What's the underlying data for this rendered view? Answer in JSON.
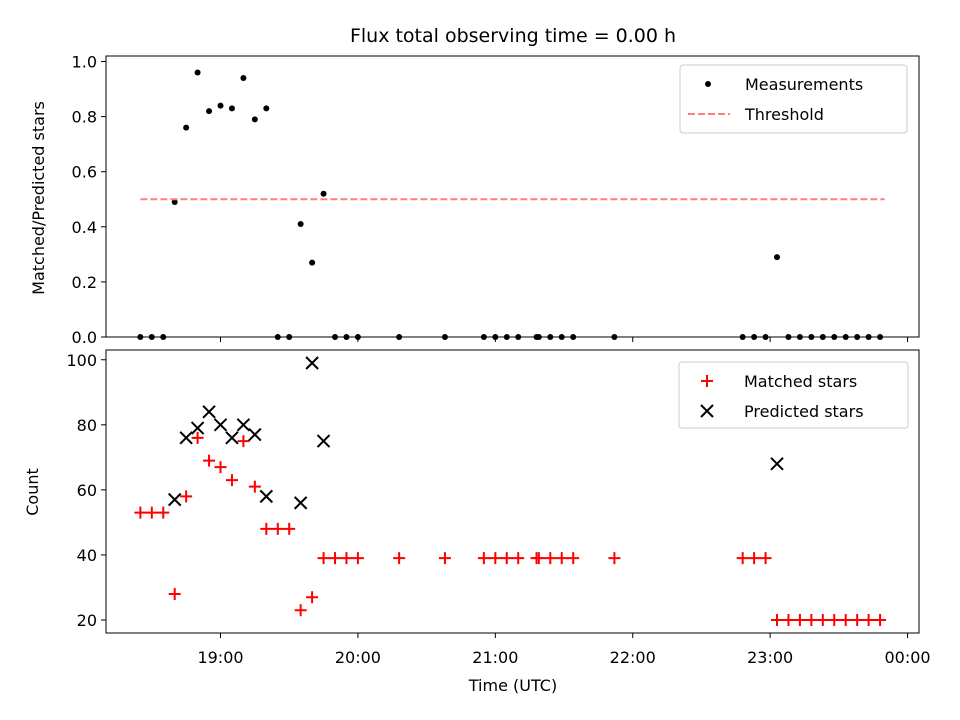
{
  "chart_data": [
    {
      "type": "scatter",
      "title": "Flux total observing time = 0.00 h",
      "ylabel": "Matched/Predicted stars",
      "xlabel": "",
      "ylim": [
        0,
        1.02
      ],
      "yticks": [
        "0.0",
        "0.2",
        "0.4",
        "0.6",
        "0.8",
        "1.0"
      ],
      "xlim": [
        "18:10",
        "00:05"
      ],
      "legend_position": "top-right",
      "series": [
        {
          "name": "Measurements",
          "color": "#000000",
          "marker": "dot",
          "points": [
            [
              "18:25",
              0
            ],
            [
              "18:30",
              0
            ],
            [
              "18:35",
              0
            ],
            [
              "18:40",
              0.49
            ],
            [
              "18:45",
              0.76
            ],
            [
              "18:50",
              0.96
            ],
            [
              "18:55",
              0.82
            ],
            [
              "19:00",
              0.84
            ],
            [
              "19:05",
              0.83
            ],
            [
              "19:10",
              0.94
            ],
            [
              "19:15",
              0.79
            ],
            [
              "19:20",
              0.83
            ],
            [
              "19:25",
              0
            ],
            [
              "19:30",
              0
            ],
            [
              "19:35",
              0.41
            ],
            [
              "19:40",
              0.27
            ],
            [
              "19:45",
              0.52
            ],
            [
              "19:50",
              0
            ],
            [
              "19:55",
              0
            ],
            [
              "20:00",
              0
            ],
            [
              "20:18",
              0
            ],
            [
              "20:38",
              0
            ],
            [
              "20:55",
              0
            ],
            [
              "21:00",
              0
            ],
            [
              "21:05",
              0
            ],
            [
              "21:10",
              0
            ],
            [
              "21:18",
              0
            ],
            [
              "21:19",
              0
            ],
            [
              "21:24",
              0
            ],
            [
              "21:29",
              0
            ],
            [
              "21:34",
              0
            ],
            [
              "21:52",
              0
            ],
            [
              "22:48",
              0
            ],
            [
              "22:53",
              0
            ],
            [
              "22:58",
              0
            ],
            [
              "23:03",
              0.29
            ],
            [
              "23:08",
              0
            ],
            [
              "23:13",
              0
            ],
            [
              "23:18",
              0
            ],
            [
              "23:23",
              0
            ],
            [
              "23:28",
              0
            ],
            [
              "23:33",
              0
            ],
            [
              "23:38",
              0
            ],
            [
              "23:43",
              0
            ],
            [
              "23:48",
              0
            ]
          ]
        },
        {
          "name": "Threshold",
          "color": "#ff7f7f",
          "style": "dashed",
          "points": [
            [
              "18:25",
              0.5
            ],
            [
              "23:50",
              0.5
            ]
          ]
        }
      ]
    },
    {
      "type": "scatter",
      "title": "",
      "ylabel": "Count",
      "xlabel": "Time (UTC)",
      "ylim": [
        16,
        103
      ],
      "yticks": [
        "20",
        "40",
        "60",
        "80",
        "100"
      ],
      "xlim": [
        "18:10",
        "00:05"
      ],
      "xticks": [
        "19:00",
        "20:00",
        "21:00",
        "22:00",
        "23:00",
        "00:00"
      ],
      "legend_position": "top-right",
      "series": [
        {
          "name": "Matched stars",
          "color": "#ff0000",
          "marker": "plus",
          "points": [
            [
              "18:25",
              53
            ],
            [
              "18:30",
              53
            ],
            [
              "18:35",
              53
            ],
            [
              "18:40",
              28
            ],
            [
              "18:45",
              58
            ],
            [
              "18:50",
              76
            ],
            [
              "18:55",
              69
            ],
            [
              "19:00",
              67
            ],
            [
              "19:05",
              63
            ],
            [
              "19:10",
              75
            ],
            [
              "19:15",
              61
            ],
            [
              "19:20",
              48
            ],
            [
              "19:25",
              48
            ],
            [
              "19:30",
              48
            ],
            [
              "19:35",
              23
            ],
            [
              "19:40",
              27
            ],
            [
              "19:45",
              39
            ],
            [
              "19:50",
              39
            ],
            [
              "19:55",
              39
            ],
            [
              "20:00",
              39
            ],
            [
              "20:18",
              39
            ],
            [
              "20:38",
              39
            ],
            [
              "20:55",
              39
            ],
            [
              "21:00",
              39
            ],
            [
              "21:05",
              39
            ],
            [
              "21:10",
              39
            ],
            [
              "21:18",
              39
            ],
            [
              "21:19",
              39
            ],
            [
              "21:24",
              39
            ],
            [
              "21:29",
              39
            ],
            [
              "21:34",
              39
            ],
            [
              "21:52",
              39
            ],
            [
              "22:48",
              39
            ],
            [
              "22:53",
              39
            ],
            [
              "22:58",
              39
            ],
            [
              "23:03",
              20
            ],
            [
              "23:08",
              20
            ],
            [
              "23:13",
              20
            ],
            [
              "23:18",
              20
            ],
            [
              "23:23",
              20
            ],
            [
              "23:28",
              20
            ],
            [
              "23:33",
              20
            ],
            [
              "23:38",
              20
            ],
            [
              "23:43",
              20
            ],
            [
              "23:48",
              20
            ]
          ]
        },
        {
          "name": "Predicted stars",
          "color": "#000000",
          "marker": "x",
          "points": [
            [
              "18:40",
              57
            ],
            [
              "18:45",
              76
            ],
            [
              "18:50",
              79
            ],
            [
              "18:55",
              84
            ],
            [
              "19:00",
              80
            ],
            [
              "19:05",
              76
            ],
            [
              "19:10",
              80
            ],
            [
              "19:15",
              77
            ],
            [
              "19:20",
              58
            ],
            [
              "19:35",
              56
            ],
            [
              "19:40",
              99
            ],
            [
              "19:45",
              75
            ],
            [
              "23:03",
              68
            ]
          ]
        }
      ]
    }
  ]
}
